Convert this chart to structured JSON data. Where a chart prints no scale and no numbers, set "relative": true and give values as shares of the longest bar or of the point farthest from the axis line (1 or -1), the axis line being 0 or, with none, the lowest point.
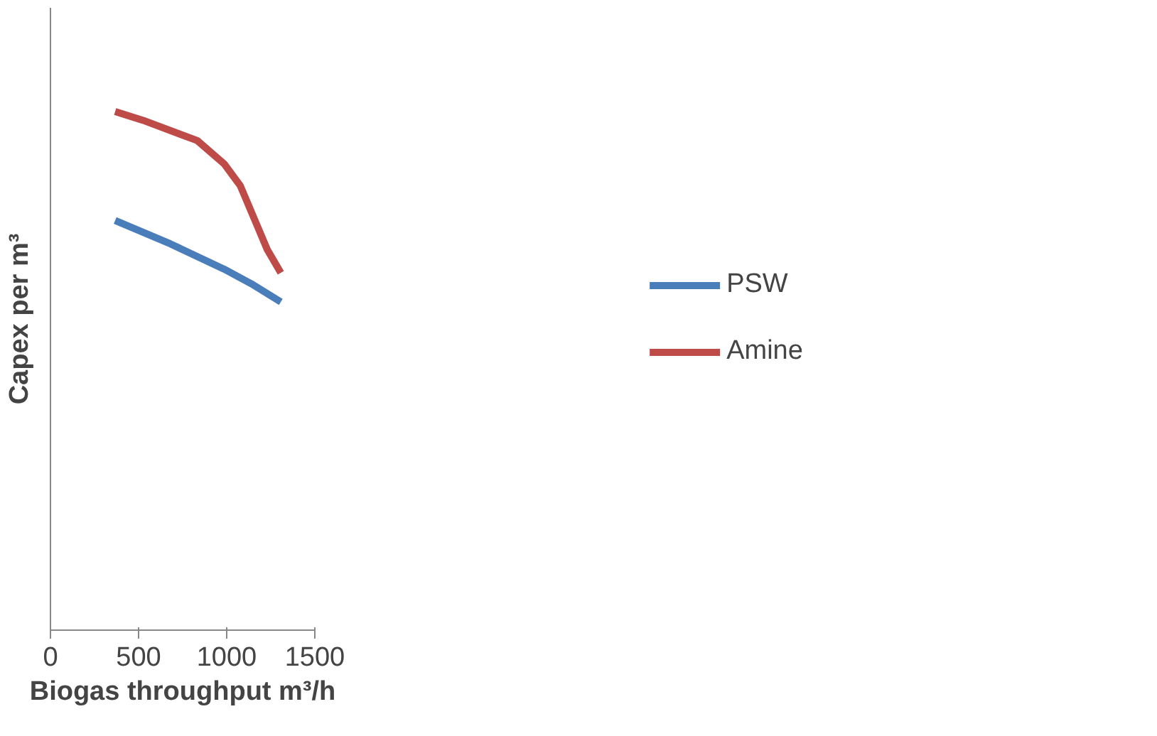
{
  "chart_data": {
    "type": "line",
    "relative": true,
    "xlabel": "Biogas throughput m³/h",
    "ylabel": "Capex per m³",
    "xlim": [
      0,
      1500
    ],
    "xticks": [
      0,
      500,
      1000,
      1500
    ],
    "grid": false,
    "legend": "right",
    "line_style": "solid",
    "series": [
      {
        "name": "PSW",
        "color": "#4a7ebb",
        "x": [
          367,
          680,
          986,
          1139,
          1307
        ],
        "values": [
          0.79,
          0.745,
          0.696,
          0.668,
          0.633
        ]
      },
      {
        "name": "Amine",
        "color": "#be4b48",
        "x": [
          367,
          526,
          833,
          986,
          1077,
          1169,
          1230,
          1307
        ],
        "values": [
          1.0,
          0.983,
          0.944,
          0.899,
          0.857,
          0.783,
          0.734,
          0.689
        ]
      }
    ]
  }
}
